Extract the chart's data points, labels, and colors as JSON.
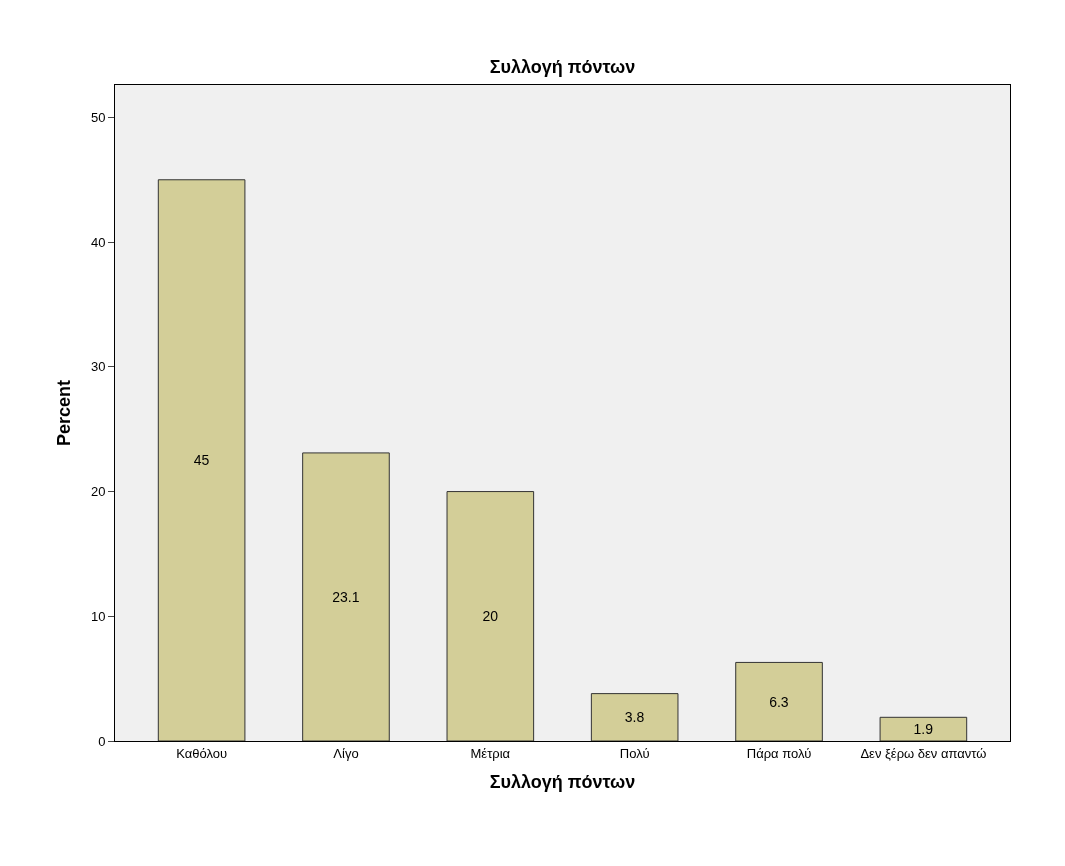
{
  "chart_data": {
    "type": "bar",
    "title": "Συλλογή πόντων",
    "xlabel": "Συλλογή πόντων",
    "ylabel": "Percent",
    "categories": [
      "Καθόλου",
      "Λίγο",
      "Μέτρια",
      "Πολύ",
      "Πάρα πολύ",
      "Δεν ξέρω δεν απαντώ"
    ],
    "values": [
      45,
      23.1,
      20,
      3.8,
      6.3,
      1.9
    ],
    "color": "#d3ce98",
    "ylim": [
      0,
      52.6
    ],
    "yticks": [
      0,
      10,
      20,
      30,
      40,
      50
    ],
    "grid": false,
    "data_labels": true
  }
}
